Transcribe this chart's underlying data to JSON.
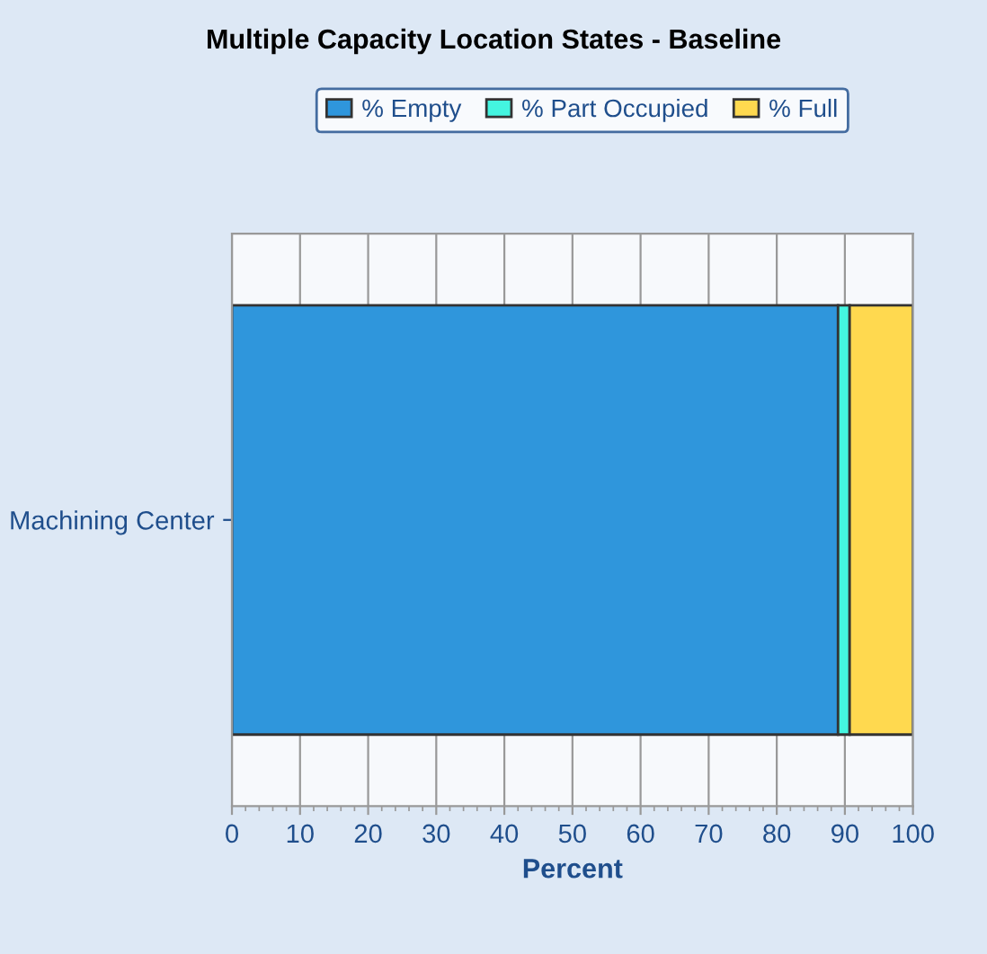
{
  "chart_data": {
    "type": "bar",
    "title": "Multiple Capacity Location States - Baseline",
    "xlabel": "Percent",
    "orientation": "horizontal",
    "stacked": true,
    "categories": [
      "Machining Center"
    ],
    "series": [
      {
        "name": "% Empty",
        "color": "#2f96dc",
        "values": [
          89
        ]
      },
      {
        "name": "% Part Occupied",
        "color": "#44f5e0",
        "values": [
          1.7
        ]
      },
      {
        "name": "% Full",
        "color": "#ffd94f",
        "values": [
          9.3
        ]
      }
    ],
    "xlim": [
      0,
      100
    ],
    "xticks": [
      0,
      10,
      20,
      30,
      40,
      50,
      60,
      70,
      80,
      90,
      100
    ],
    "grid": "x",
    "legend": "top"
  }
}
